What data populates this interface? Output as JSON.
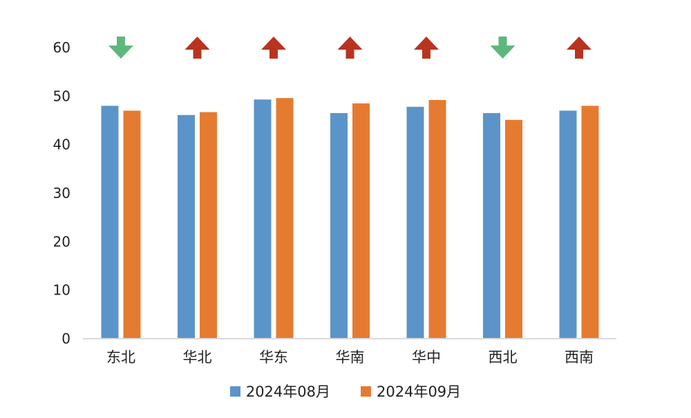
{
  "chart_data": {
    "type": "bar",
    "categories": [
      "东北",
      "华北",
      "华东",
      "华南",
      "华中",
      "西北",
      "西南"
    ],
    "series": [
      {
        "name": "2024年08月",
        "values": [
          48.0,
          46.1,
          49.3,
          46.5,
          47.8,
          46.5,
          47.0
        ],
        "color": "#5b94c8"
      },
      {
        "name": "2024年09月",
        "values": [
          47.0,
          46.7,
          49.6,
          48.5,
          49.2,
          45.1,
          48.0
        ],
        "color": "#e57b31"
      }
    ],
    "trend": [
      "down",
      "up",
      "up",
      "up",
      "up",
      "down",
      "up"
    ],
    "trend_colors": {
      "up": "#b8341f",
      "down": "#5db87c"
    },
    "ylim": [
      0,
      60
    ],
    "yticks": [
      0,
      10,
      20,
      30,
      40,
      50,
      60
    ],
    "grid": false,
    "legend_position": "bottom",
    "title": "",
    "xlabel": "",
    "ylabel": ""
  }
}
